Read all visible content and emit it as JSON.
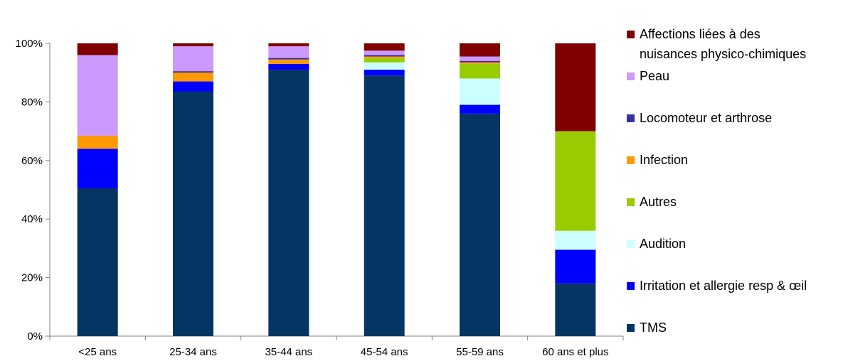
{
  "chart_data": {
    "type": "bar",
    "stacked": true,
    "percent_stacked": true,
    "categories": [
      "<25 ans",
      "25-34 ans",
      "35-44 ans",
      "45-54 ans",
      "55-59 ans",
      "60 ans et plus"
    ],
    "y_ticks": [
      "0%",
      "20%",
      "40%",
      "60%",
      "80%",
      "100%"
    ],
    "ylim": [
      0,
      100
    ],
    "grid": false,
    "legend_position": "right",
    "series": [
      {
        "name": "TMS",
        "color": "#043563",
        "values": [
          50.5,
          83.5,
          91,
          89,
          76,
          18
        ]
      },
      {
        "name": "Irritation et allergie resp & œil",
        "color": "#0000ff",
        "values": [
          13.5,
          3.5,
          2,
          2,
          3,
          11.5
        ]
      },
      {
        "name": "Audition",
        "color": "#ccffff",
        "values": [
          0,
          0,
          0,
          2.5,
          9,
          6.5
        ]
      },
      {
        "name": "Autres",
        "color": "#99cc00",
        "values": [
          0,
          0,
          0,
          1.5,
          5,
          34
        ]
      },
      {
        "name": "Infection",
        "color": "#ff9900",
        "values": [
          4.5,
          3,
          1.5,
          0.5,
          0.5,
          0
        ]
      },
      {
        "name": "Locomoteur et arthrose",
        "color": "#333399",
        "values": [
          0,
          0.5,
          0.5,
          0.5,
          0.5,
          0
        ]
      },
      {
        "name": "Peau",
        "color": "#cc99ff",
        "values": [
          27.5,
          8.5,
          4,
          1.5,
          1.5,
          0
        ]
      },
      {
        "name": "Affections liées à des nuisances physico-chimiques",
        "color": "#800000",
        "values": [
          4,
          1,
          1,
          2.5,
          4.5,
          30
        ]
      }
    ],
    "legend_order": [
      7,
      6,
      5,
      4,
      3,
      2,
      1,
      0
    ],
    "legend_lines": [
      [
        "Affections liées à des",
        "nuisances physico-chimiques"
      ],
      [
        "Peau"
      ],
      [
        "Locomoteur et arthrose"
      ],
      [
        "Infection"
      ],
      [
        "Autres"
      ],
      [
        "Audition"
      ],
      [
        "Irritation et allergie resp & œil"
      ],
      [
        "TMS"
      ]
    ]
  }
}
